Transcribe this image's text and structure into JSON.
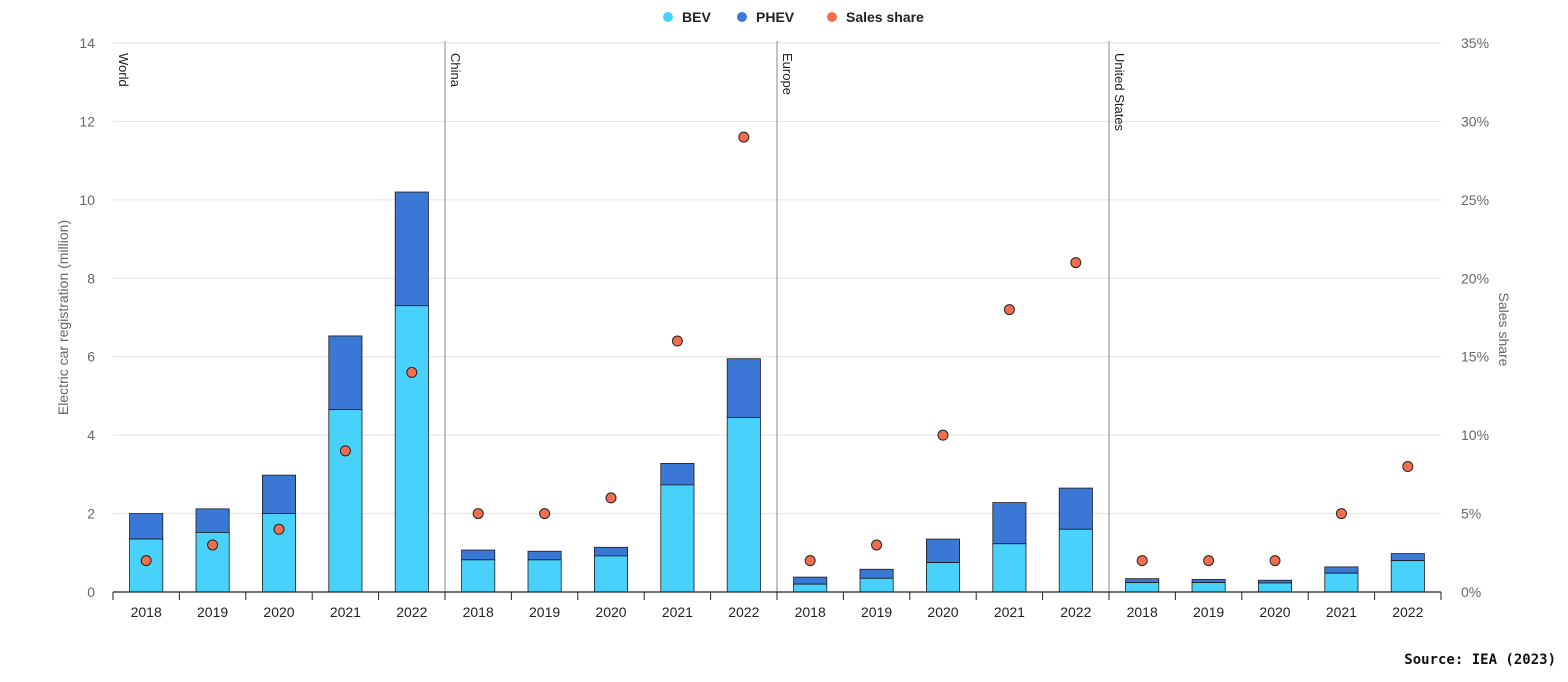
{
  "chart_data": {
    "type": "bar",
    "stacked": true,
    "legend": {
      "placement": "top-center",
      "entries": [
        {
          "name": "BEV",
          "color": "#48D2FB"
        },
        {
          "name": "PHEV",
          "color": "#3B78D5"
        },
        {
          "name": "Sales share",
          "color": "#F26E4F"
        }
      ]
    },
    "ylabel": "Electric car registration (million)",
    "y2label": "Sales share",
    "ylim": [
      0,
      14
    ],
    "y2lim": [
      0,
      35
    ],
    "yticks": [
      "0",
      "2",
      "4",
      "6",
      "8",
      "10",
      "12",
      "14"
    ],
    "y2ticks": [
      "0%",
      "5%",
      "10%",
      "15%",
      "20%",
      "25%",
      "30%",
      "35%"
    ],
    "grid": true,
    "groups": [
      {
        "region": "World",
        "years": [
          "2018",
          "2019",
          "2020",
          "2021",
          "2022"
        ],
        "bev": [
          1.35,
          1.52,
          2.0,
          4.65,
          7.3
        ],
        "phev": [
          0.65,
          0.6,
          0.98,
          1.88,
          2.9
        ],
        "share": [
          2,
          3,
          4,
          9,
          14
        ]
      },
      {
        "region": "China",
        "years": [
          "2018",
          "2019",
          "2020",
          "2021",
          "2022"
        ],
        "bev": [
          0.82,
          0.82,
          0.92,
          2.73,
          4.45
        ],
        "phev": [
          0.25,
          0.22,
          0.22,
          0.55,
          1.5
        ],
        "share": [
          5,
          5,
          6,
          16,
          29
        ]
      },
      {
        "region": "Europe",
        "years": [
          "2018",
          "2019",
          "2020",
          "2021",
          "2022"
        ],
        "bev": [
          0.2,
          0.35,
          0.75,
          1.23,
          1.6
        ],
        "phev": [
          0.18,
          0.23,
          0.6,
          1.05,
          1.05
        ],
        "share": [
          2,
          3,
          10,
          18,
          21
        ]
      },
      {
        "region": "United States",
        "years": [
          "2018",
          "2019",
          "2020",
          "2021",
          "2022"
        ],
        "bev": [
          0.24,
          0.24,
          0.23,
          0.48,
          0.8
        ],
        "phev": [
          0.1,
          0.08,
          0.07,
          0.16,
          0.18
        ],
        "share": [
          2,
          2,
          2,
          5,
          8
        ]
      }
    ]
  },
  "source": "Source: IEA (2023)"
}
